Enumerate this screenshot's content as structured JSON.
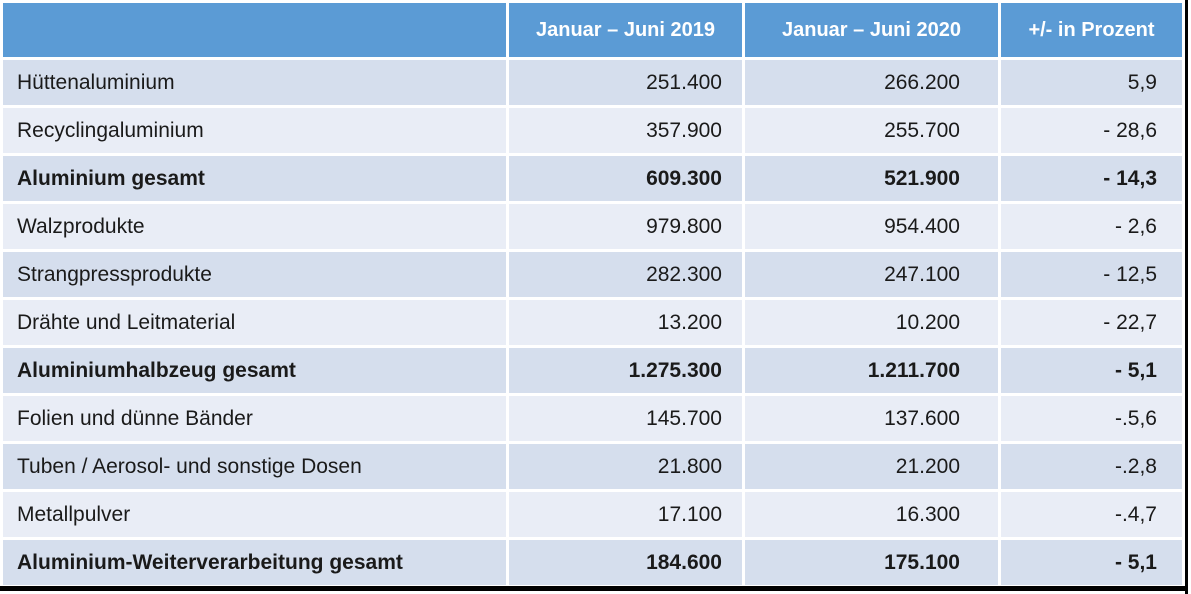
{
  "colors": {
    "header_bg": "#5B9BD5",
    "header_text": "#FFFFFF",
    "band_medium": "#D5DEED",
    "band_light": "#E9EDF6",
    "body_text": "#1A1A1A",
    "rule_black": "#000000",
    "separator_white": "#FFFFFF"
  },
  "table": {
    "header": {
      "col0": "",
      "col1": "Januar – Juni 2019",
      "col2": "Januar – Juni 2020",
      "col3": "+/- in Prozent"
    },
    "rows": [
      {
        "label": "Hüttenaluminium",
        "v2019": "251.400",
        "v2020": "266.200",
        "change": "5,9",
        "bold": false
      },
      {
        "label": "Recyclingaluminium",
        "v2019": "357.900",
        "v2020": "255.700",
        "change": "- 28,6",
        "bold": false
      },
      {
        "label": "Aluminium gesamt",
        "v2019": "609.300",
        "v2020": "521.900",
        "change": "- 14,3",
        "bold": true
      },
      {
        "label": "Walzprodukte",
        "v2019": "979.800",
        "v2020": "954.400",
        "change": "- 2,6",
        "bold": false
      },
      {
        "label": "Strangpressprodukte",
        "v2019": "282.300",
        "v2020": "247.100",
        "change": "- 12,5",
        "bold": false
      },
      {
        "label": "Drähte und Leitmaterial",
        "v2019": "13.200",
        "v2020": "10.200",
        "change": "- 22,7",
        "bold": false
      },
      {
        "label": "Aluminiumhalbzeug gesamt",
        "v2019": "1.275.300",
        "v2020": "1.211.700",
        "change": "- 5,1",
        "bold": true
      },
      {
        "label": "Folien und dünne Bänder",
        "v2019": "145.700",
        "v2020": "137.600",
        "change": "-.5,6",
        "bold": false
      },
      {
        "label": "Tuben / Aerosol- und sonstige Dosen",
        "v2019": "21.800",
        "v2020": "21.200",
        "change": "-.2,8",
        "bold": false
      },
      {
        "label": "Metallpulver",
        "v2019": "17.100",
        "v2020": "16.300",
        "change": "-.4,7",
        "bold": false
      },
      {
        "label": "Aluminium-Weiterverarbeitung gesamt",
        "v2019": "184.600",
        "v2020": "175.100",
        "change": "- 5,1",
        "bold": true
      }
    ]
  },
  "chart_data": {
    "type": "table",
    "columns": [
      "",
      "Januar – Juni 2019",
      "Januar – Juni 2020",
      "+/- in Prozent"
    ],
    "rows": [
      [
        "Hüttenaluminium",
        "251.400",
        "266.200",
        "5,9"
      ],
      [
        "Recyclingaluminium",
        "357.900",
        "255.700",
        "- 28,6"
      ],
      [
        "Aluminium gesamt",
        "609.300",
        "521.900",
        "- 14,3"
      ],
      [
        "Walzprodukte",
        "979.800",
        "954.400",
        "- 2,6"
      ],
      [
        "Strangpressprodukte",
        "282.300",
        "247.100",
        "- 12,5"
      ],
      [
        "Drähte und Leitmaterial",
        "13.200",
        "10.200",
        "- 22,7"
      ],
      [
        "Aluminiumhalbzeug gesamt",
        "1.275.300",
        "1.211.700",
        "- 5,1"
      ],
      [
        "Folien und dünne Bänder",
        "145.700",
        "137.600",
        "-.5,6"
      ],
      [
        "Tuben / Aerosol- und sonstige Dosen",
        "21.800",
        "21.200",
        "-.2,8"
      ],
      [
        "Metallpulver",
        "17.100",
        "16.300",
        "-.4,7"
      ],
      [
        "Aluminium-Weiterverarbeitung gesamt",
        "184.600",
        "175.100",
        "- 5,1"
      ]
    ],
    "total_rows": [
      2,
      6,
      10
    ],
    "layout": {
      "banding": [
        "medium",
        "light"
      ],
      "header_style": "blue-bold-white",
      "value_alignment": "right"
    }
  }
}
